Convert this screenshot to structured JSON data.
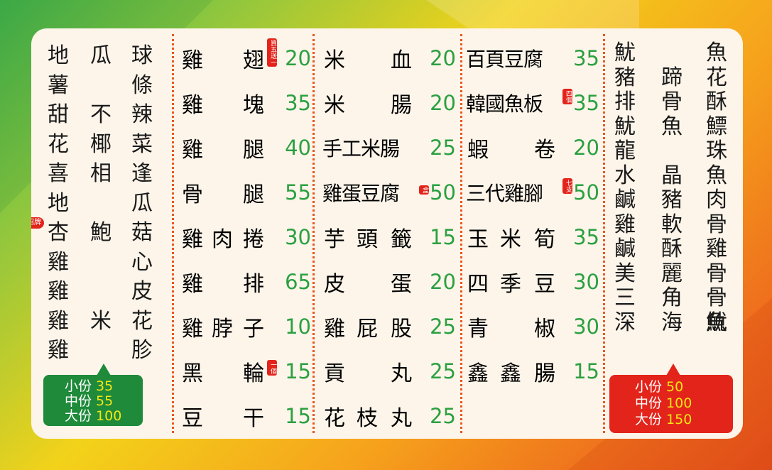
{
  "col1": {
    "c1": [
      "地",
      "薯",
      "甜",
      "花",
      "喜",
      "地",
      "杏",
      "雞",
      "雞",
      "雞",
      "雞"
    ],
    "c2": [
      "瓜",
      "",
      "不",
      "椰",
      "相",
      "",
      "鮑",
      "",
      "",
      "米",
      ""
    ],
    "c3": [
      "球",
      "條",
      "辣",
      "菜",
      "逢",
      "瓜",
      "菇",
      "心",
      "皮",
      "花",
      "胗"
    ],
    "badge": "招牌",
    "sizes": [
      {
        "label": "小份",
        "price": "35"
      },
      {
        "label": "中份",
        "price": "55"
      },
      {
        "label": "大份",
        "price": "100"
      }
    ],
    "colors": {
      "box": "#1e8a3a",
      "price": "#f5e614"
    }
  },
  "col2": [
    {
      "a": "雞",
      "b": "",
      "c": "翅",
      "tag": "買五送一",
      "price": "20"
    },
    {
      "a": "雞",
      "b": "",
      "c": "塊",
      "tag": "",
      "price": "35"
    },
    {
      "a": "雞",
      "b": "",
      "c": "腿",
      "tag": "",
      "price": "40"
    },
    {
      "a": "骨",
      "b": "",
      "c": "腿",
      "tag": "",
      "price": "55"
    },
    {
      "a": "雞",
      "b": "肉",
      "c": "捲",
      "tag": "",
      "price": "30"
    },
    {
      "a": "雞",
      "b": "",
      "c": "排",
      "tag": "",
      "price": "65"
    },
    {
      "a": "雞",
      "b": "脖",
      "c": "子",
      "tag": "",
      "price": "10"
    },
    {
      "a": "黑",
      "b": "",
      "c": "輪",
      "tag": "一個",
      "price": "15"
    },
    {
      "a": "豆",
      "b": "",
      "c": "干",
      "tag": "",
      "price": "15"
    }
  ],
  "col3": [
    {
      "name": [
        "米",
        "",
        "血"
      ],
      "tag": "",
      "price": "20"
    },
    {
      "name": [
        "米",
        "",
        "腸"
      ],
      "tag": "",
      "price": "20"
    },
    {
      "name": [
        "手工米腸"
      ],
      "tag": "",
      "price": "25"
    },
    {
      "name": [
        "雞蛋豆腐"
      ],
      "tag": "盒",
      "price": "50"
    },
    {
      "name": [
        "芋",
        "頭",
        "籤"
      ],
      "tag": "",
      "price": "15"
    },
    {
      "name": [
        "皮",
        "",
        "蛋"
      ],
      "tag": "",
      "price": "20"
    },
    {
      "name": [
        "雞",
        "屁",
        "股"
      ],
      "tag": "",
      "price": "25"
    },
    {
      "name": [
        "貢",
        "",
        "丸"
      ],
      "tag": "",
      "price": "25"
    },
    {
      "name": [
        "花",
        "枝",
        "丸"
      ],
      "tag": "",
      "price": "25"
    }
  ],
  "col4": [
    {
      "name": [
        "百頁豆腐"
      ],
      "tag": "",
      "price": "35"
    },
    {
      "name": [
        "韓國魚板"
      ],
      "tag": "四個",
      "price": "35"
    },
    {
      "name": [
        "蝦",
        "",
        "卷"
      ],
      "tag": "",
      "price": "20"
    },
    {
      "name": [
        "三代雞腳"
      ],
      "tag": "七支",
      "price": "50"
    },
    {
      "name": [
        "玉",
        "米",
        "筍"
      ],
      "tag": "",
      "price": "35"
    },
    {
      "name": [
        "四",
        "季",
        "豆"
      ],
      "tag": "",
      "price": "30"
    },
    {
      "name": [
        "青",
        "",
        "椒"
      ],
      "tag": "",
      "price": "30"
    },
    {
      "name": [
        "鑫",
        "鑫",
        "腸"
      ],
      "tag": "",
      "price": "15"
    }
  ],
  "col5": {
    "c1": [
      "魷",
      "豬",
      "排",
      "魷",
      "龍",
      "水",
      "鹹",
      "雞",
      "鹹",
      "美",
      "三",
      "深"
    ],
    "c2": [
      "",
      "蹄",
      "骨",
      "魚",
      "",
      "晶",
      "豬",
      "軟",
      "酥",
      "麗",
      "角",
      "海"
    ],
    "c3": [
      "魚",
      "花",
      "酥",
      "鰾",
      "珠",
      "魚",
      "肉",
      "骨",
      "雞",
      "骨",
      "骨",
      "魷"
    ],
    "c4": [
      "",
      "",
      "",
      "",
      "",
      "",
      "",
      "",
      "",
      "",
      "",
      "魚"
    ],
    "sizes": [
      {
        "label": "小份",
        "price": "50"
      },
      {
        "label": "中份",
        "price": "100"
      },
      {
        "label": "大份",
        "price": "150"
      }
    ],
    "colors": {
      "box": "#e3241b",
      "price": "#f5e614"
    }
  }
}
